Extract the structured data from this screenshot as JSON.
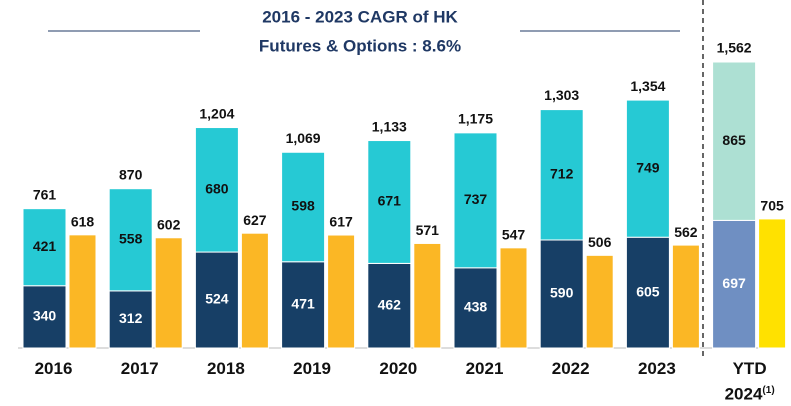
{
  "chart_data": {
    "type": "bar",
    "title_lines": [
      "2016 - 2023 CAGR of HK",
      "Futures & Options : 8.6%"
    ],
    "categories": [
      "2016",
      "2017",
      "2018",
      "2019",
      "2020",
      "2021",
      "2022",
      "2023",
      "YTD 2024"
    ],
    "category_footnote": "(1)",
    "series": [
      {
        "color": "#173f66",
        "last_color": "#6f8fc2",
        "label_color": "#ffffff",
        "stack": "a",
        "values": [
          340,
          312,
          524,
          471,
          462,
          438,
          590,
          605,
          697
        ]
      },
      {
        "color": "#26c9d4",
        "last_color": "#ade0d3",
        "label_color": "#111111",
        "stack": "a",
        "values": [
          421,
          558,
          680,
          598,
          671,
          737,
          712,
          749,
          865
        ]
      },
      {
        "color": "#fbb725",
        "last_color": "#ffe100",
        "stack": "b",
        "values": [
          618,
          602,
          627,
          617,
          571,
          547,
          506,
          562,
          705
        ]
      }
    ],
    "totals": [
      761,
      870,
      1204,
      1069,
      1133,
      1175,
      1303,
      1354,
      1562
    ],
    "total_labels": [
      "761",
      "870",
      "1,204",
      "1,069",
      "1,133",
      "1,175",
      "1,303",
      "1,354",
      "1,562"
    ]
  }
}
